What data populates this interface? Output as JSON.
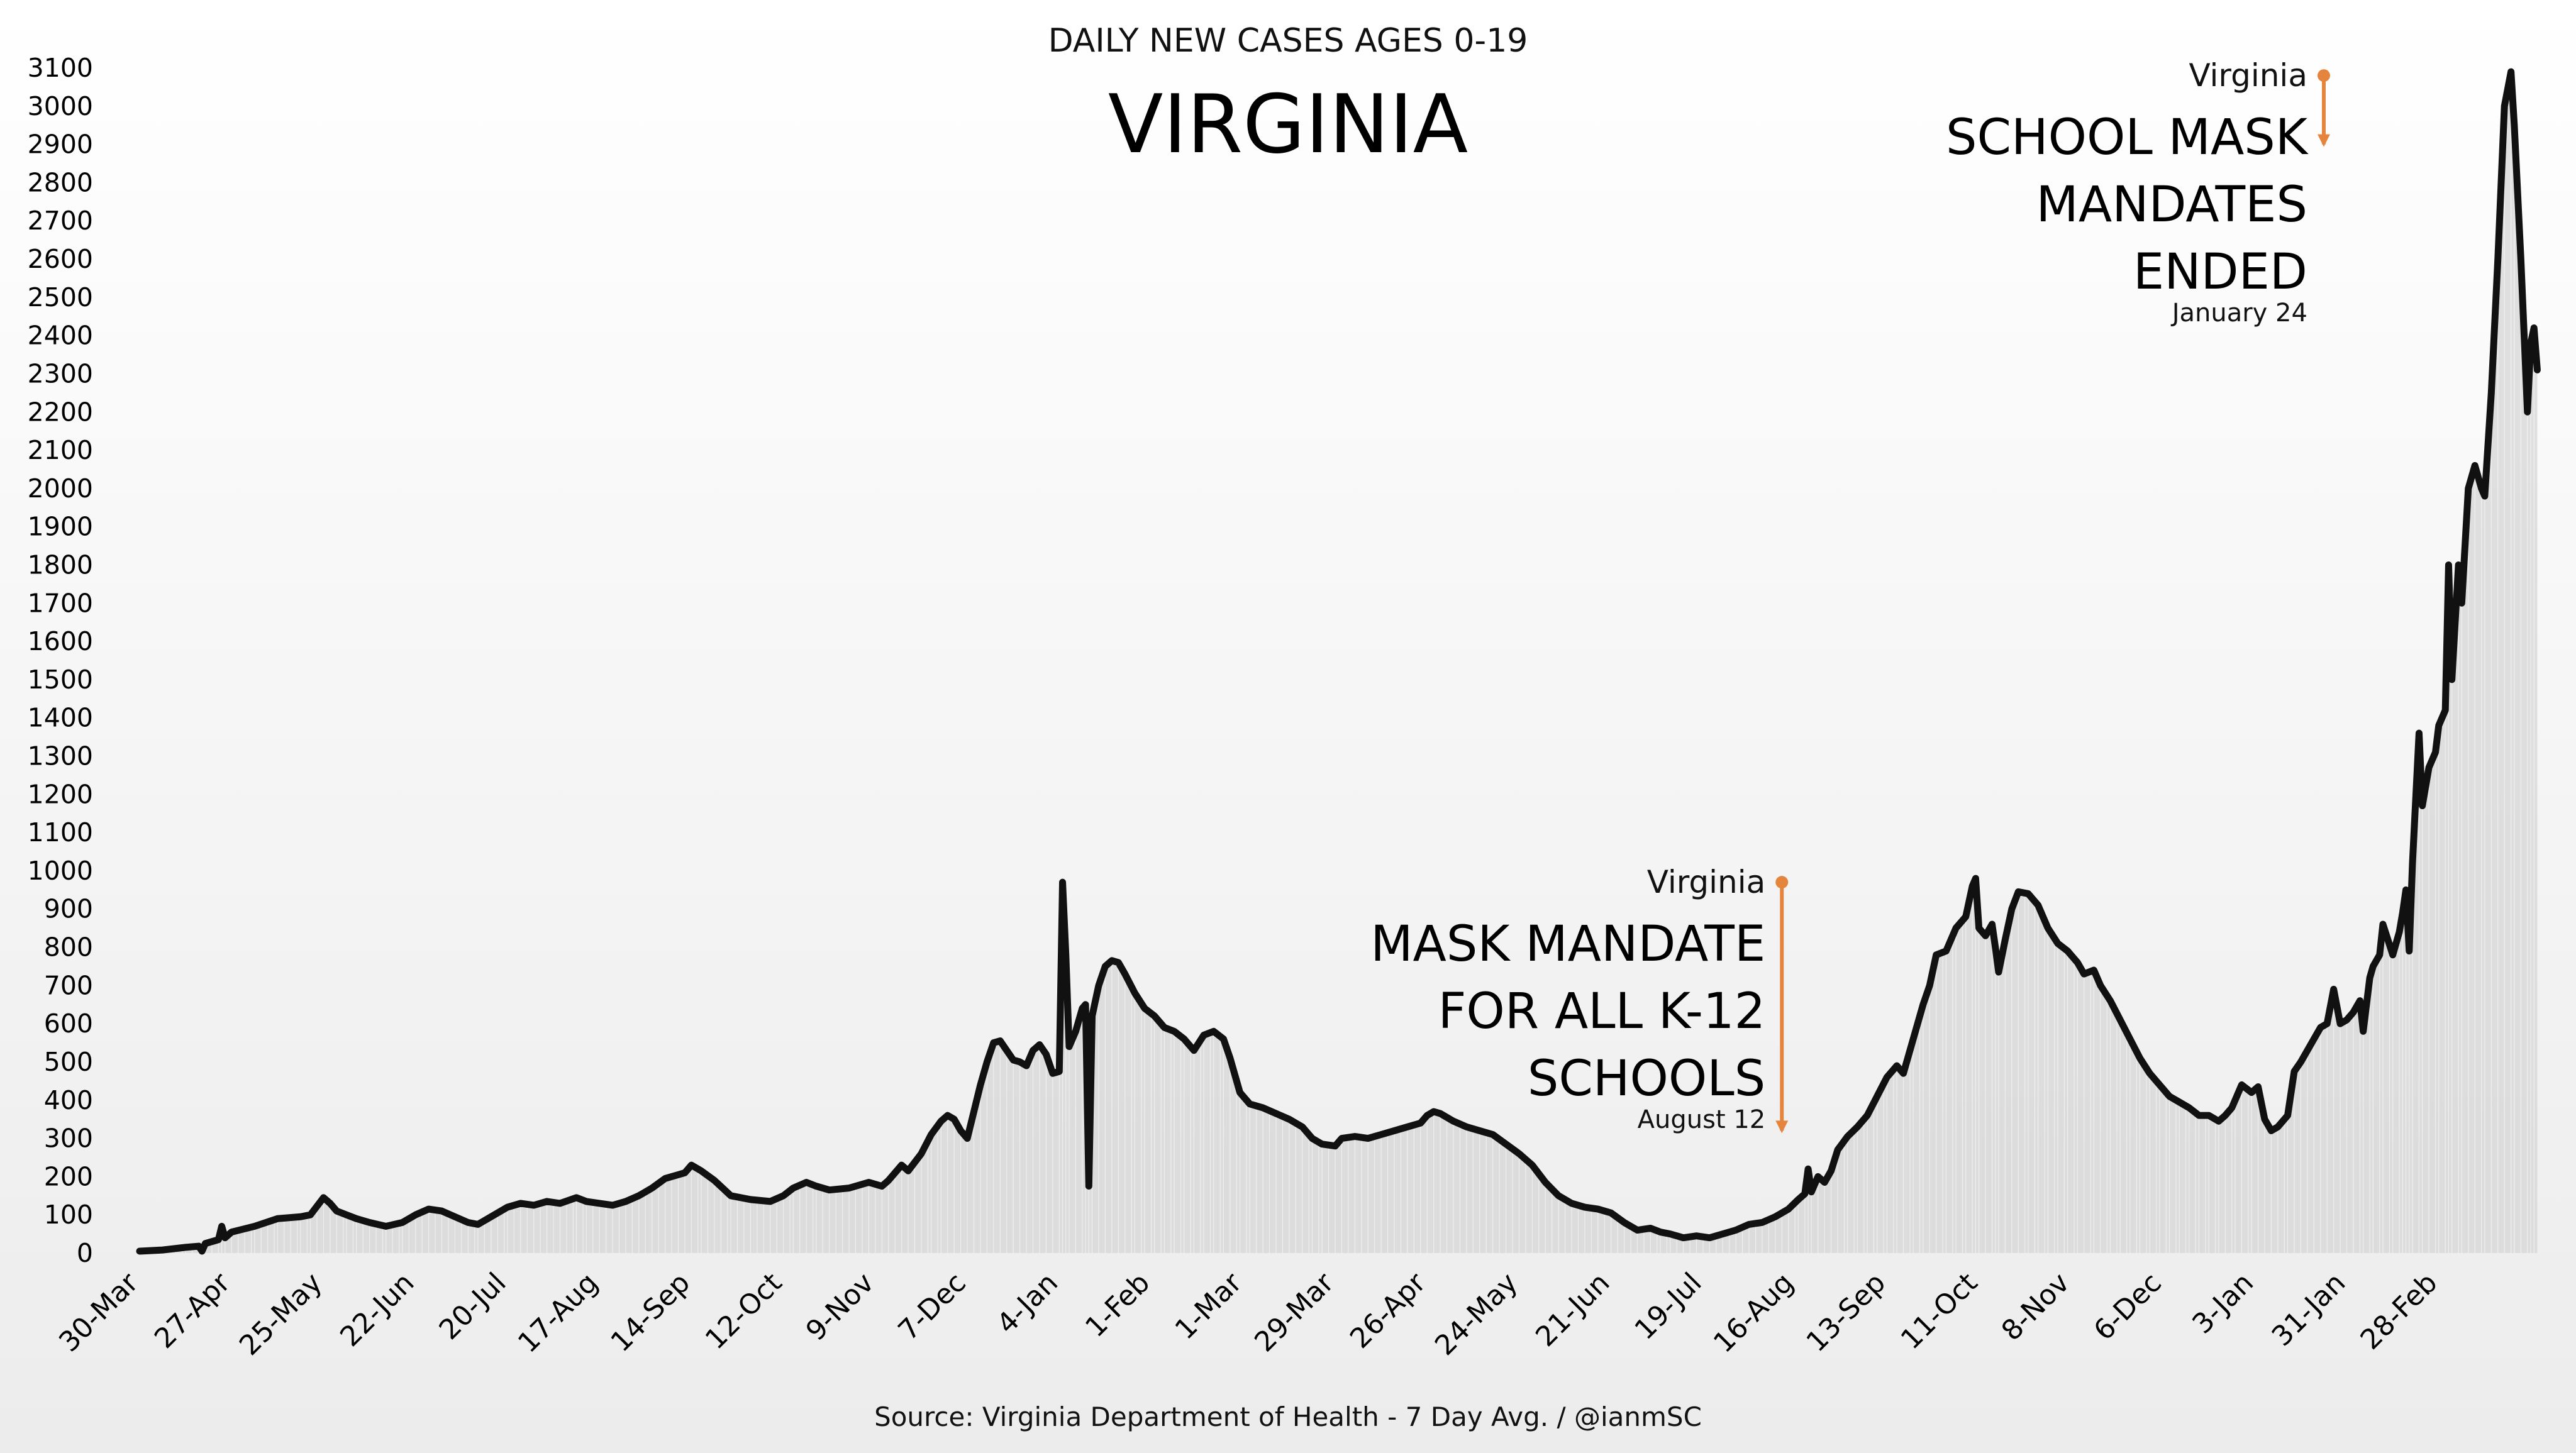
{
  "chart_data": {
    "type": "line",
    "title": "VIRGINIA",
    "subtitle": "DAILY NEW CASES AGES 0-19",
    "source": "Source: Virginia Department of Health - 7 Day Avg. / @ianmSC",
    "xlabel": "",
    "ylabel": "",
    "ylim": [
      0,
      3100
    ],
    "y_ticks": [
      0,
      100,
      200,
      300,
      400,
      500,
      600,
      700,
      800,
      900,
      1000,
      1100,
      1200,
      1300,
      1400,
      1500,
      1600,
      1700,
      1800,
      1900,
      2000,
      2100,
      2200,
      2300,
      2400,
      2500,
      2600,
      2700,
      2800,
      2900,
      3000,
      3100
    ],
    "x_start_date": "2020-03-30",
    "x_tick_labels": [
      "30-Mar",
      "27-Apr",
      "25-May",
      "22-Jun",
      "20-Jul",
      "17-Aug",
      "14-Sep",
      "12-Oct",
      "9-Nov",
      "7-Dec",
      "4-Jan",
      "1-Feb",
      "1-Mar",
      "29-Mar",
      "26-Apr",
      "24-May",
      "21-Jun",
      "19-Jul",
      "16-Aug",
      "13-Sep",
      "11-Oct",
      "8-Nov",
      "6-Dec",
      "3-Jan",
      "31-Jan",
      "28-Feb"
    ],
    "x_tick_days": [
      0,
      28,
      56,
      84,
      112,
      140,
      168,
      196,
      224,
      252,
      280,
      308,
      336,
      364,
      392,
      420,
      448,
      476,
      504,
      532,
      560,
      588,
      616,
      644,
      672,
      700
    ],
    "x_end_day": 728,
    "grid": false,
    "legend": "none",
    "series": [
      {
        "name": "",
        "color": "#111111",
        "area_color": "#d6d6d6",
        "points": [
          [
            0,
            5
          ],
          [
            7,
            8
          ],
          [
            14,
            15
          ],
          [
            18,
            18
          ],
          [
            19,
            5
          ],
          [
            20,
            25
          ],
          [
            24,
            35
          ],
          [
            25,
            70
          ],
          [
            26,
            40
          ],
          [
            28,
            55
          ],
          [
            35,
            70
          ],
          [
            42,
            90
          ],
          [
            49,
            95
          ],
          [
            52,
            100
          ],
          [
            56,
            145
          ],
          [
            58,
            130
          ],
          [
            60,
            110
          ],
          [
            63,
            100
          ],
          [
            66,
            90
          ],
          [
            70,
            80
          ],
          [
            75,
            70
          ],
          [
            80,
            80
          ],
          [
            84,
            100
          ],
          [
            88,
            115
          ],
          [
            92,
            110
          ],
          [
            96,
            95
          ],
          [
            100,
            80
          ],
          [
            103,
            75
          ],
          [
            107,
            95
          ],
          [
            112,
            120
          ],
          [
            116,
            130
          ],
          [
            120,
            125
          ],
          [
            124,
            135
          ],
          [
            128,
            130
          ],
          [
            133,
            145
          ],
          [
            136,
            135
          ],
          [
            140,
            130
          ],
          [
            144,
            125
          ],
          [
            148,
            135
          ],
          [
            152,
            150
          ],
          [
            156,
            170
          ],
          [
            160,
            195
          ],
          [
            164,
            205
          ],
          [
            166,
            210
          ],
          [
            168,
            230
          ],
          [
            171,
            215
          ],
          [
            175,
            190
          ],
          [
            180,
            150
          ],
          [
            186,
            140
          ],
          [
            192,
            135
          ],
          [
            196,
            150
          ],
          [
            199,
            170
          ],
          [
            203,
            185
          ],
          [
            206,
            175
          ],
          [
            210,
            165
          ],
          [
            216,
            170
          ],
          [
            222,
            185
          ],
          [
            226,
            175
          ],
          [
            228,
            190
          ],
          [
            232,
            230
          ],
          [
            234,
            215
          ],
          [
            238,
            260
          ],
          [
            241,
            310
          ],
          [
            244,
            345
          ],
          [
            246,
            360
          ],
          [
            248,
            350
          ],
          [
            250,
            320
          ],
          [
            252,
            300
          ],
          [
            254,
            370
          ],
          [
            256,
            440
          ],
          [
            258,
            500
          ],
          [
            260,
            550
          ],
          [
            262,
            555
          ],
          [
            264,
            530
          ],
          [
            266,
            505
          ],
          [
            268,
            500
          ],
          [
            270,
            490
          ],
          [
            272,
            530
          ],
          [
            274,
            545
          ],
          [
            276,
            520
          ],
          [
            278,
            470
          ],
          [
            280,
            475
          ],
          [
            281,
            970
          ],
          [
            282,
            780
          ],
          [
            283,
            540
          ],
          [
            285,
            580
          ],
          [
            287,
            640
          ],
          [
            288,
            650
          ],
          [
            289,
            175
          ],
          [
            290,
            620
          ],
          [
            292,
            700
          ],
          [
            294,
            750
          ],
          [
            296,
            765
          ],
          [
            298,
            760
          ],
          [
            300,
            730
          ],
          [
            303,
            680
          ],
          [
            306,
            640
          ],
          [
            309,
            620
          ],
          [
            312,
            590
          ],
          [
            315,
            580
          ],
          [
            318,
            560
          ],
          [
            321,
            530
          ],
          [
            324,
            570
          ],
          [
            327,
            580
          ],
          [
            330,
            560
          ],
          [
            332,
            510
          ],
          [
            335,
            420
          ],
          [
            338,
            390
          ],
          [
            342,
            380
          ],
          [
            346,
            365
          ],
          [
            350,
            350
          ],
          [
            354,
            330
          ],
          [
            357,
            300
          ],
          [
            360,
            285
          ],
          [
            364,
            280
          ],
          [
            366,
            300
          ],
          [
            370,
            305
          ],
          [
            374,
            300
          ],
          [
            378,
            310
          ],
          [
            382,
            320
          ],
          [
            386,
            330
          ],
          [
            390,
            340
          ],
          [
            392,
            360
          ],
          [
            394,
            370
          ],
          [
            396,
            365
          ],
          [
            400,
            345
          ],
          [
            404,
            330
          ],
          [
            408,
            320
          ],
          [
            412,
            310
          ],
          [
            416,
            285
          ],
          [
            420,
            260
          ],
          [
            424,
            230
          ],
          [
            428,
            185
          ],
          [
            432,
            150
          ],
          [
            436,
            130
          ],
          [
            440,
            120
          ],
          [
            444,
            115
          ],
          [
            448,
            105
          ],
          [
            452,
            80
          ],
          [
            456,
            60
          ],
          [
            460,
            65
          ],
          [
            463,
            55
          ],
          [
            466,
            50
          ],
          [
            470,
            40
          ],
          [
            474,
            45
          ],
          [
            478,
            40
          ],
          [
            482,
            50
          ],
          [
            486,
            60
          ],
          [
            490,
            75
          ],
          [
            494,
            80
          ],
          [
            498,
            95
          ],
          [
            502,
            115
          ],
          [
            505,
            140
          ],
          [
            507,
            155
          ],
          [
            508,
            220
          ],
          [
            509,
            160
          ],
          [
            511,
            200
          ],
          [
            513,
            185
          ],
          [
            515,
            215
          ],
          [
            517,
            270
          ],
          [
            520,
            305
          ],
          [
            523,
            330
          ],
          [
            526,
            360
          ],
          [
            529,
            410
          ],
          [
            532,
            460
          ],
          [
            535,
            490
          ],
          [
            537,
            470
          ],
          [
            540,
            560
          ],
          [
            543,
            650
          ],
          [
            545,
            700
          ],
          [
            547,
            780
          ],
          [
            550,
            790
          ],
          [
            553,
            850
          ],
          [
            556,
            880
          ],
          [
            558,
            960
          ],
          [
            559,
            980
          ],
          [
            560,
            850
          ],
          [
            562,
            830
          ],
          [
            564,
            860
          ],
          [
            565,
            800
          ],
          [
            566,
            735
          ],
          [
            568,
            820
          ],
          [
            570,
            900
          ],
          [
            572,
            945
          ],
          [
            575,
            940
          ],
          [
            578,
            910
          ],
          [
            581,
            850
          ],
          [
            584,
            810
          ],
          [
            587,
            790
          ],
          [
            590,
            760
          ],
          [
            592,
            730
          ],
          [
            595,
            740
          ],
          [
            597,
            700
          ],
          [
            600,
            660
          ],
          [
            603,
            610
          ],
          [
            606,
            560
          ],
          [
            609,
            510
          ],
          [
            612,
            470
          ],
          [
            615,
            440
          ],
          [
            618,
            410
          ],
          [
            621,
            395
          ],
          [
            624,
            380
          ],
          [
            627,
            360
          ],
          [
            630,
            360
          ],
          [
            633,
            345
          ],
          [
            635,
            360
          ],
          [
            637,
            380
          ],
          [
            638,
            400
          ],
          [
            640,
            440
          ],
          [
            643,
            420
          ],
          [
            645,
            435
          ],
          [
            647,
            350
          ],
          [
            649,
            320
          ],
          [
            651,
            330
          ],
          [
            654,
            360
          ],
          [
            656,
            475
          ],
          [
            658,
            500
          ],
          [
            660,
            530
          ],
          [
            662,
            560
          ],
          [
            664,
            590
          ],
          [
            666,
            600
          ],
          [
            668,
            690
          ],
          [
            670,
            600
          ],
          [
            672,
            610
          ],
          [
            674,
            630
          ],
          [
            676,
            660
          ],
          [
            677,
            580
          ],
          [
            679,
            720
          ],
          [
            680,
            750
          ],
          [
            682,
            780
          ],
          [
            683,
            860
          ],
          [
            686,
            780
          ],
          [
            688,
            840
          ],
          [
            689,
            890
          ],
          [
            690,
            950
          ],
          [
            691,
            790
          ],
          [
            692,
            1020
          ],
          [
            694,
            1360
          ],
          [
            695,
            1170
          ],
          [
            697,
            1270
          ],
          [
            699,
            1310
          ],
          [
            700,
            1380
          ],
          [
            702,
            1420
          ],
          [
            703,
            1800
          ],
          [
            704,
            1500
          ],
          [
            706,
            1800
          ],
          [
            707,
            1700
          ],
          [
            709,
            2000
          ],
          [
            711,
            2060
          ],
          [
            713,
            2000
          ],
          [
            714,
            1980
          ],
          [
            716,
            2250
          ],
          [
            718,
            2600
          ],
          [
            720,
            3000
          ],
          [
            722,
            3090
          ],
          [
            723,
            2950
          ],
          [
            725,
            2600
          ],
          [
            727,
            2200
          ],
          [
            728,
            2380
          ],
          [
            729,
            2420
          ],
          [
            730,
            2310
          ]
        ]
      }
    ],
    "annotations": [
      {
        "label_small": "Virginia",
        "label_big": [
          "MASK MANDATE",
          "FOR ALL K-12",
          "SCHOOLS"
        ],
        "date": "August 12",
        "x_day": 500,
        "y_top": 970,
        "y_bottom": 320,
        "color": "#e5853d"
      },
      {
        "label_small": "Virginia",
        "label_big": [
          "SCHOOL MASK",
          "MANDATES",
          "ENDED"
        ],
        "date": "January 24",
        "x_day": 665,
        "y_top": 3080,
        "y_bottom": 2900,
        "color": "#e5853d"
      }
    ]
  }
}
